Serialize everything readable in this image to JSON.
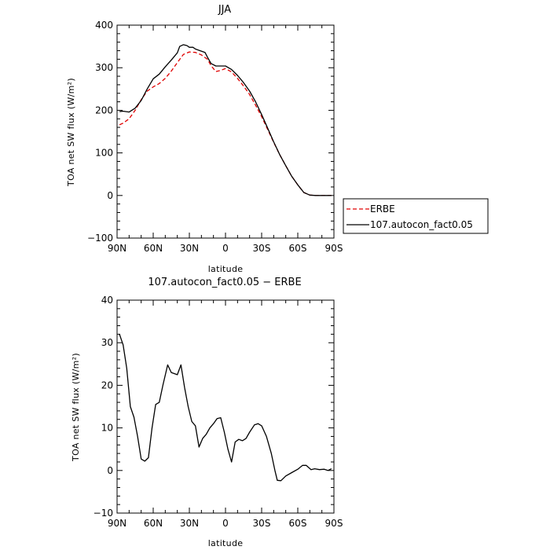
{
  "chart_data": [
    {
      "type": "line",
      "title": "JJA",
      "xlabel": "latitude",
      "ylabel": "TOA net SW flux (W/m²)",
      "x_tick_labels": [
        "90N",
        "60N",
        "30N",
        "0",
        "30S",
        "60S",
        "90S"
      ],
      "y_tick_labels": [
        "−100",
        "0",
        "100",
        "200",
        "300",
        "400"
      ],
      "xlim": [
        90,
        -90
      ],
      "ylim": [
        -100,
        400
      ],
      "legend": "right",
      "series": [
        {
          "name": "ERBE",
          "color": "#e00000",
          "dash": "dashed",
          "points": [
            [
              88,
              166
            ],
            [
              85,
              170
            ],
            [
              80,
              180
            ],
            [
              75,
              200
            ],
            [
              70,
              225
            ],
            [
              65,
              245
            ],
            [
              60,
              255
            ],
            [
              55,
              263
            ],
            [
              50,
              275
            ],
            [
              45,
              292
            ],
            [
              40,
              312
            ],
            [
              35,
              331
            ],
            [
              30,
              337
            ],
            [
              25,
              336
            ],
            [
              20,
              330
            ],
            [
              15,
              320
            ],
            [
              12,
              305
            ],
            [
              8,
              291
            ],
            [
              5,
              293
            ],
            [
              0,
              298
            ],
            [
              -5,
              290
            ],
            [
              -10,
              275
            ],
            [
              -15,
              257
            ],
            [
              -20,
              237
            ],
            [
              -25,
              212
            ],
            [
              -30,
              185
            ],
            [
              -35,
              155
            ],
            [
              -40,
              125
            ],
            [
              -45,
              96
            ],
            [
              -50,
              70
            ],
            [
              -55,
              45
            ],
            [
              -60,
              25
            ],
            [
              -65,
              7
            ],
            [
              -70,
              1
            ],
            [
              -75,
              0
            ],
            [
              -80,
              0
            ],
            [
              -85,
              0
            ],
            [
              -88,
              0
            ]
          ]
        },
        {
          "name": "107.autocon_fact0.05",
          "color": "#000000",
          "dash": "solid",
          "points": [
            [
              88,
              197
            ],
            [
              85,
              198
            ],
            [
              80,
              196
            ],
            [
              75,
              205
            ],
            [
              70,
              223
            ],
            [
              65,
              250
            ],
            [
              60,
              274
            ],
            [
              55,
              285
            ],
            [
              50,
              302
            ],
            [
              45,
              318
            ],
            [
              40,
              335
            ],
            [
              38,
              350
            ],
            [
              35,
              354
            ],
            [
              32,
              352
            ],
            [
              30,
              348
            ],
            [
              27,
              348
            ],
            [
              25,
              344
            ],
            [
              20,
              339
            ],
            [
              17,
              336
            ],
            [
              15,
              325
            ],
            [
              12,
              310
            ],
            [
              8,
              304
            ],
            [
              5,
              304
            ],
            [
              0,
              304
            ],
            [
              -5,
              296
            ],
            [
              -10,
              282
            ],
            [
              -15,
              265
            ],
            [
              -20,
              245
            ],
            [
              -25,
              220
            ],
            [
              -30,
              190
            ],
            [
              -35,
              158
            ],
            [
              -40,
              126
            ],
            [
              -45,
              96
            ],
            [
              -50,
              70
            ],
            [
              -55,
              45
            ],
            [
              -60,
              25
            ],
            [
              -65,
              7
            ],
            [
              -70,
              1
            ],
            [
              -75,
              0
            ],
            [
              -80,
              0
            ],
            [
              -85,
              0
            ],
            [
              -88,
              0
            ]
          ]
        }
      ]
    },
    {
      "type": "line",
      "title": "107.autocon_fact0.05 − ERBE",
      "xlabel": "latitude",
      "ylabel": "TOA net SW flux (W/m²)",
      "x_tick_labels": [
        "90N",
        "60N",
        "30N",
        "0",
        "30S",
        "60S",
        "90S"
      ],
      "y_tick_labels": [
        "−10",
        "0",
        "10",
        "20",
        "30",
        "40"
      ],
      "xlim": [
        90,
        -90
      ],
      "ylim": [
        -10,
        40
      ],
      "series": [
        {
          "color": "#000000",
          "dash": "solid",
          "points": [
            [
              88,
              32
            ],
            [
              85,
              29.5
            ],
            [
              82,
              24
            ],
            [
              79,
              15
            ],
            [
              76,
              12.5
            ],
            [
              73,
              8
            ],
            [
              70,
              2.7
            ],
            [
              67,
              2.2
            ],
            [
              64,
              3
            ],
            [
              61,
              10
            ],
            [
              58,
              15.5
            ],
            [
              55,
              16
            ],
            [
              52,
              20
            ],
            [
              48,
              24.8
            ],
            [
              45,
              23
            ],
            [
              40,
              22.5
            ],
            [
              37,
              24.8
            ],
            [
              34,
              19.5
            ],
            [
              31,
              15
            ],
            [
              28,
              11.5
            ],
            [
              25,
              10.5
            ],
            [
              22,
              5.5
            ],
            [
              19,
              7.5
            ],
            [
              16,
              8.5
            ],
            [
              13,
              10
            ],
            [
              10,
              11
            ],
            [
              7,
              12.2
            ],
            [
              4,
              12.4
            ],
            [
              1,
              9
            ],
            [
              -2,
              5
            ],
            [
              -5,
              2
            ],
            [
              -8,
              6.7
            ],
            [
              -11,
              7.3
            ],
            [
              -14,
              7
            ],
            [
              -17,
              7.5
            ],
            [
              -20,
              9
            ],
            [
              -24,
              10.7
            ],
            [
              -27,
              11
            ],
            [
              -30,
              10.5
            ],
            [
              -34,
              8
            ],
            [
              -38,
              4
            ],
            [
              -41,
              0
            ],
            [
              -43,
              -2.3
            ],
            [
              -46,
              -2.4
            ],
            [
              -50,
              -1.3
            ],
            [
              -55,
              -0.5
            ],
            [
              -60,
              0.3
            ],
            [
              -64,
              1.2
            ],
            [
              -67,
              1.2
            ],
            [
              -71,
              0.2
            ],
            [
              -74,
              0.4
            ],
            [
              -78,
              0.2
            ],
            [
              -82,
              0.3
            ],
            [
              -85,
              0
            ],
            [
              -88,
              0.4
            ]
          ]
        }
      ]
    }
  ]
}
